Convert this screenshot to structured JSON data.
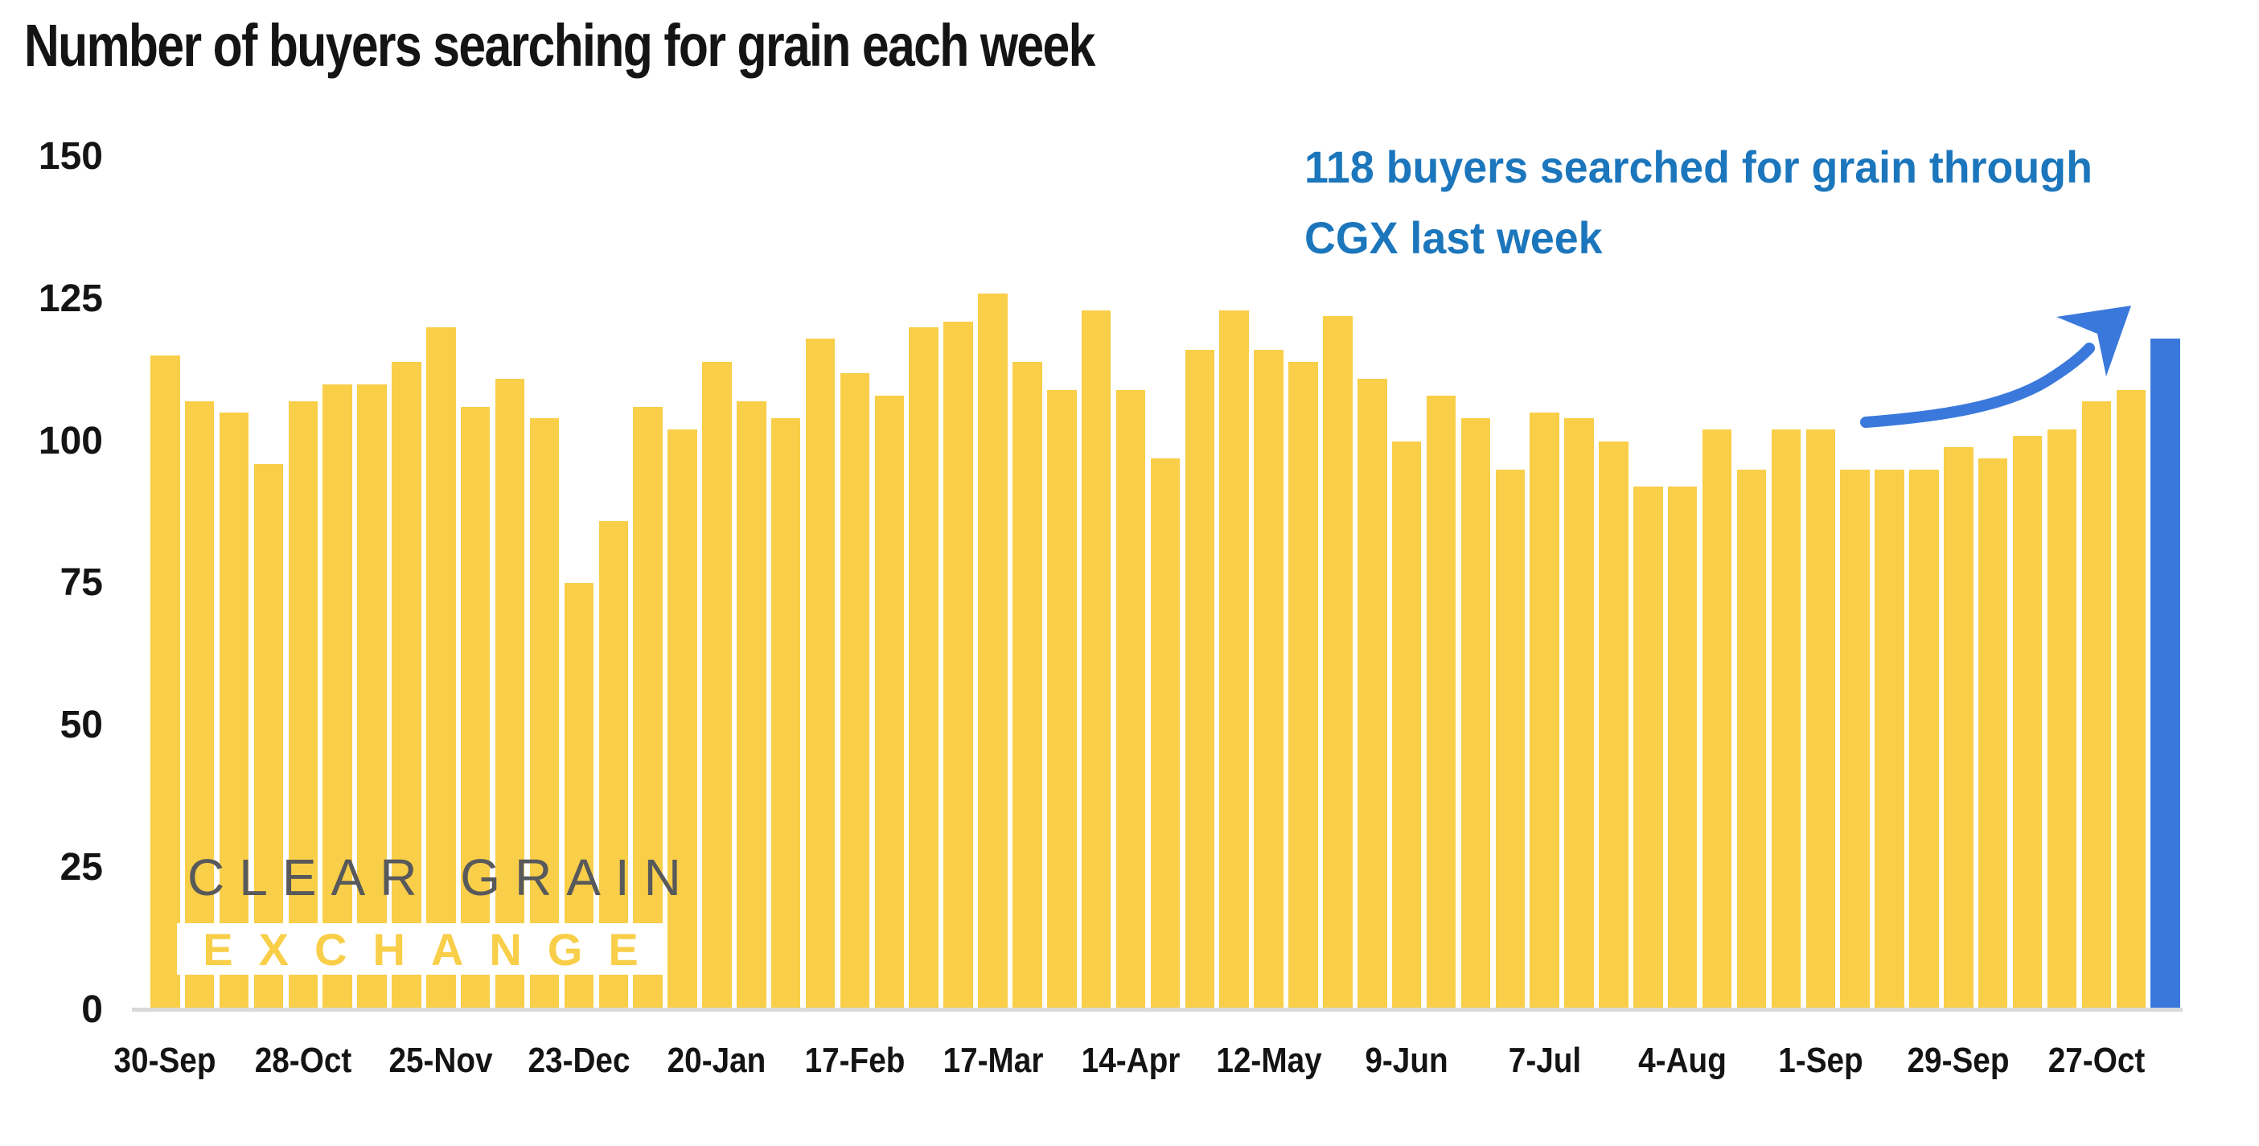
{
  "title": "Number of buyers searching for grain each week",
  "annotation": {
    "line1": "118 buyers searched for grain through",
    "line2": "CGX last week"
  },
  "watermark": {
    "line1": "CLEAR GRAIN",
    "line2": "EXCHANGE"
  },
  "colors": {
    "bar": "#F9CE48",
    "highlight_bar": "#3A79DB",
    "arrow": "#3A79DB",
    "annotation_text": "#1B76BC",
    "watermark_gray": "#58595B",
    "axis_line": "#D9D9D9",
    "text": "#141414"
  },
  "chart_data": {
    "type": "bar",
    "title": "Number of buyers searching for grain each week",
    "xlabel": "",
    "ylabel": "",
    "ylim": [
      0,
      150
    ],
    "yticks": [
      0,
      25,
      50,
      75,
      100,
      125,
      150
    ],
    "grid": false,
    "legend": false,
    "x_tick_labels": [
      "30-Sep",
      "28-Oct",
      "25-Nov",
      "23-Dec",
      "20-Jan",
      "17-Feb",
      "17-Mar",
      "14-Apr",
      "12-May",
      "9-Jun",
      "7-Jul",
      "4-Aug",
      "1-Sep",
      "29-Sep",
      "27-Oct"
    ],
    "x_tick_interval": 4,
    "values": [
      115,
      107,
      105,
      96,
      107,
      110,
      110,
      114,
      120,
      106,
      111,
      104,
      75,
      86,
      106,
      102,
      114,
      107,
      104,
      118,
      112,
      108,
      120,
      121,
      126,
      114,
      109,
      123,
      109,
      97,
      116,
      123,
      116,
      114,
      122,
      111,
      100,
      108,
      104,
      95,
      105,
      104,
      100,
      92,
      92,
      102,
      95,
      102,
      102,
      95,
      95,
      95,
      99,
      97,
      101,
      102,
      107,
      109,
      118
    ],
    "highlight_index": 58,
    "highlight_value": 118,
    "series_name": "Number of buyers searching for grain each week"
  }
}
